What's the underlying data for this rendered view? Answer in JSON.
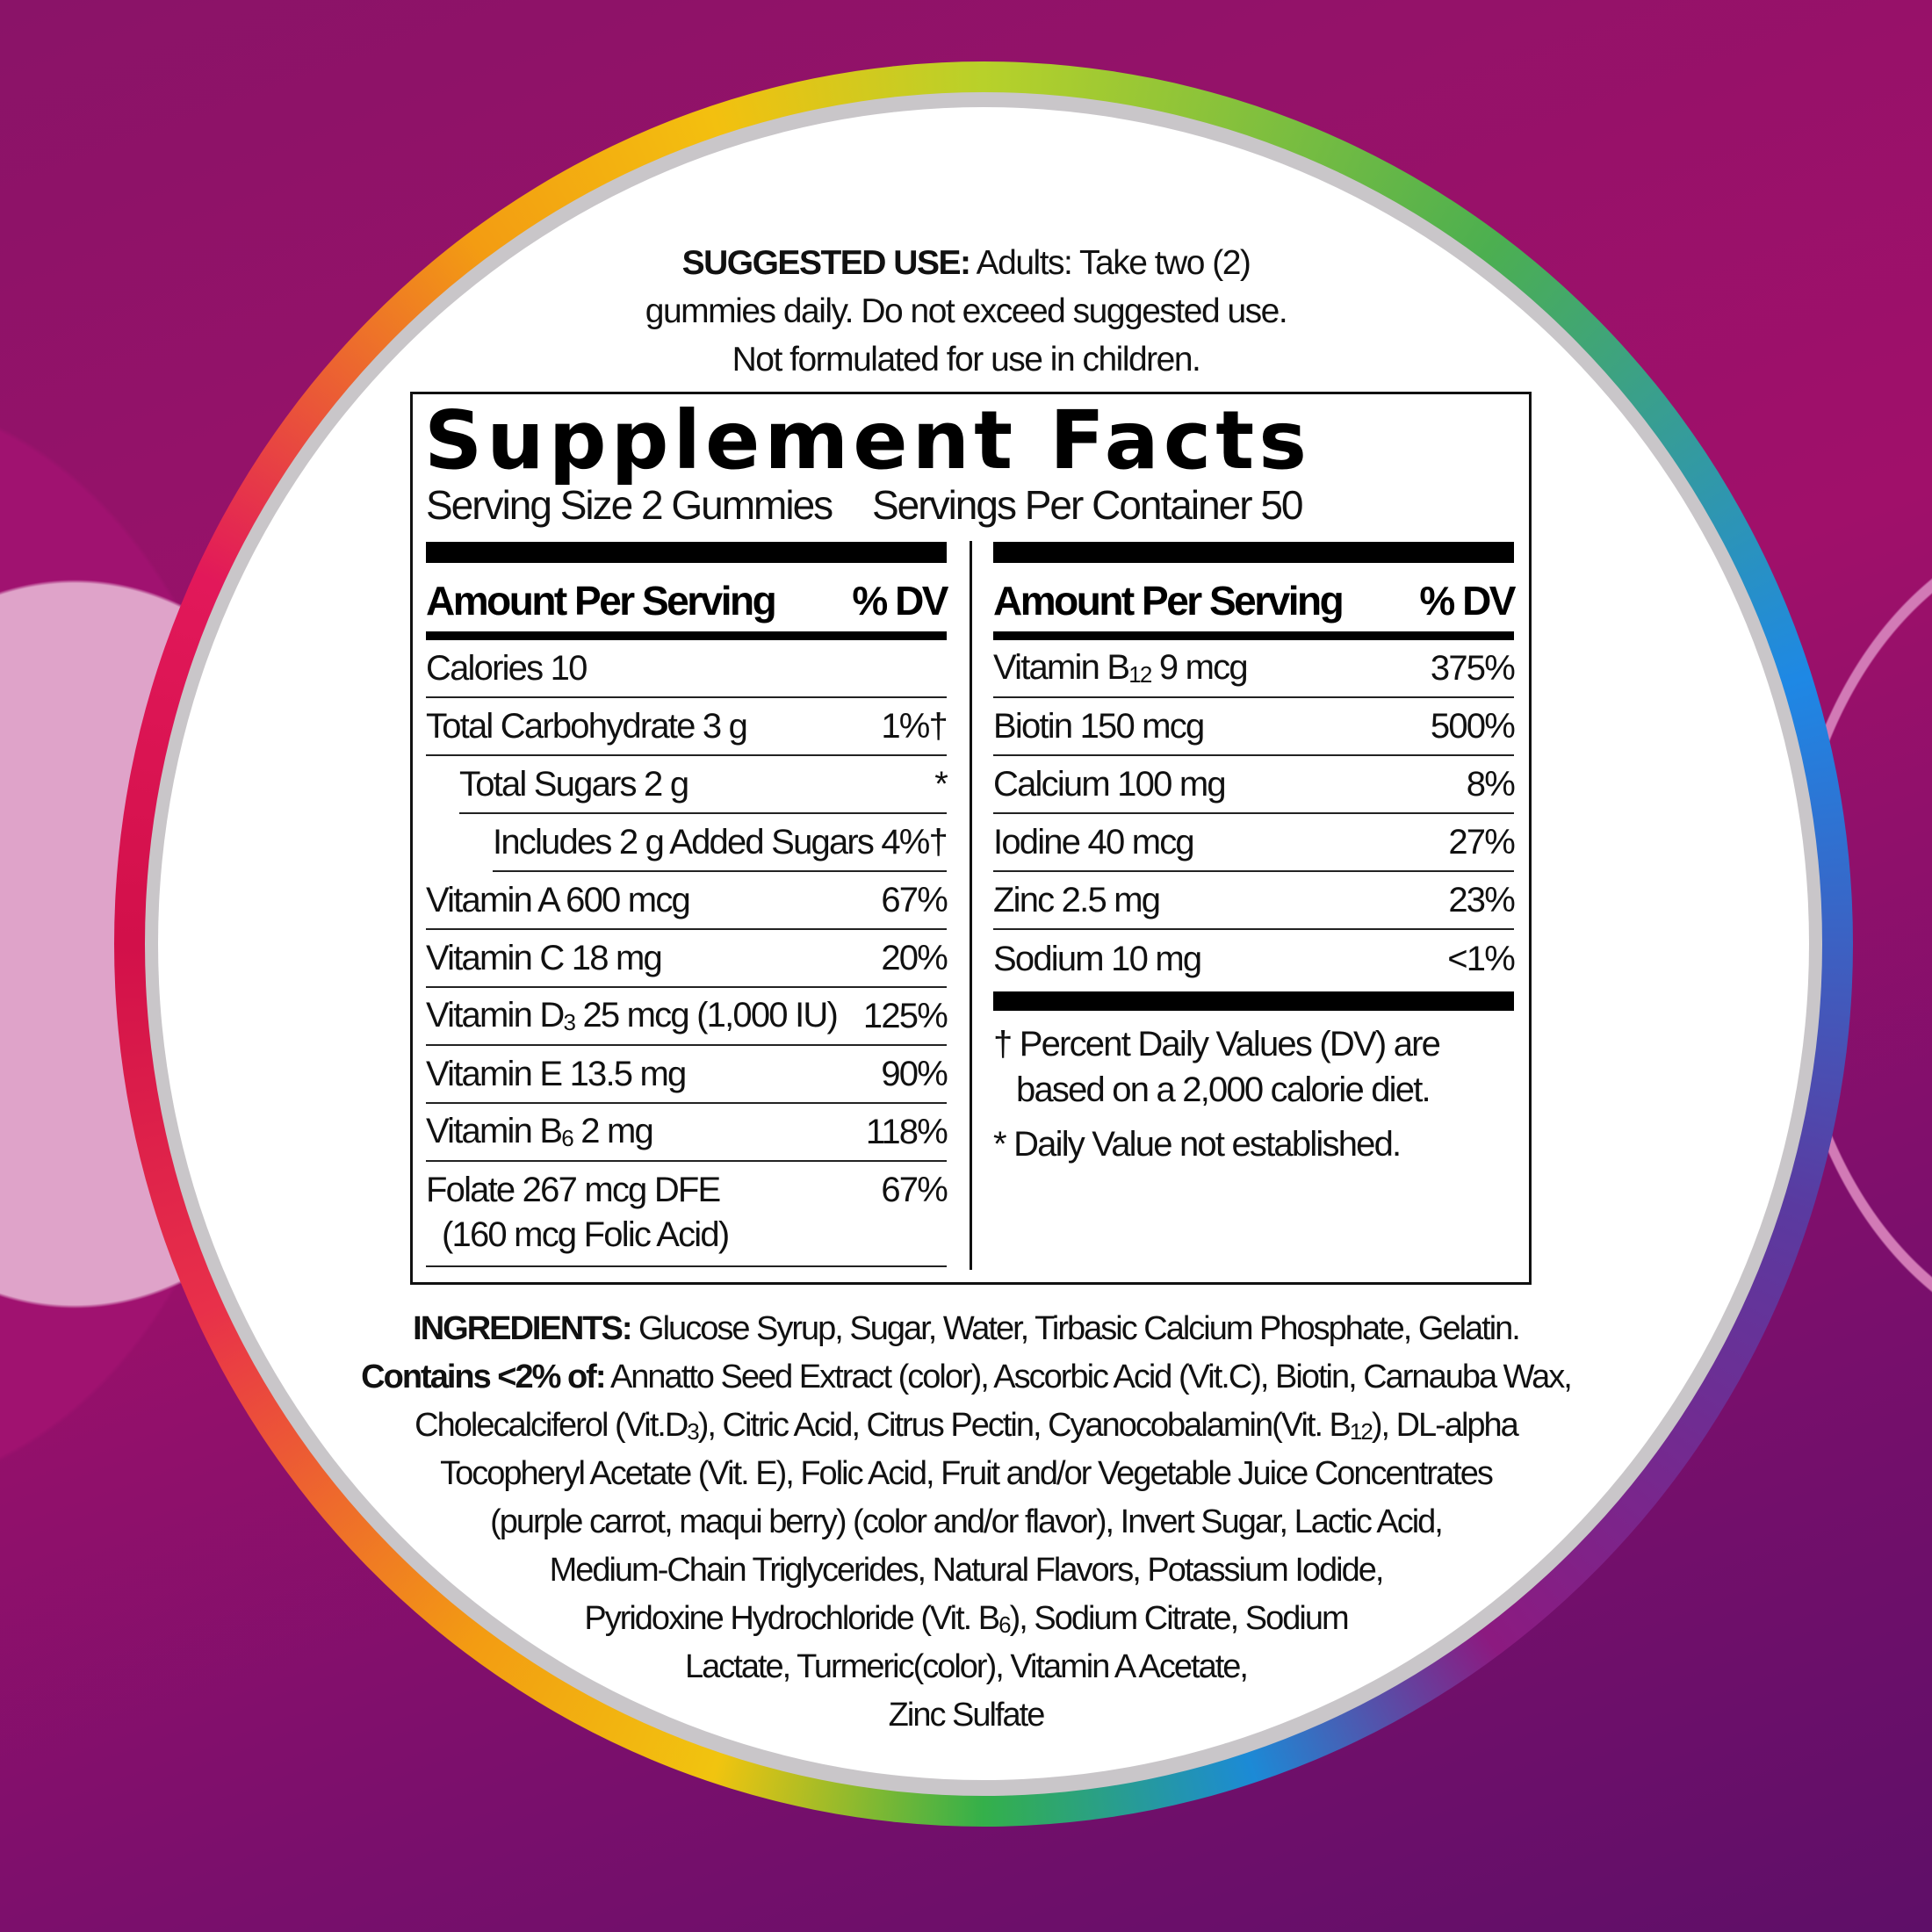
{
  "suggested_use": {
    "label": "SUGGESTED USE:",
    "lines": [
      " Adults: Take two (2)",
      "gummies daily. Do not exceed suggested use.",
      "Not formulated for use in children."
    ]
  },
  "facts": {
    "title": "Supplement Facts",
    "serving_size": "Serving Size 2 Gummies",
    "servings_per_container": "Servings Per Container 50",
    "header_amount": "Amount Per Serving",
    "header_dv": "% DV",
    "left_rows": [
      {
        "label": "Calories 10",
        "dv": "",
        "indent": 0
      },
      {
        "label": "Total Carbohydrate 3 g",
        "dv": "1%†",
        "indent": 0
      },
      {
        "label": "Total Sugars 2 g",
        "dv": "*",
        "indent": 1
      },
      {
        "label": "Includes 2 g Added Sugars",
        "dv": "4%†",
        "indent": 2
      },
      {
        "label": "Vitamin A 600 mcg",
        "dv": "67%",
        "indent": 0
      },
      {
        "label": "Vitamin C 18 mg",
        "dv": "20%",
        "indent": 0
      },
      {
        "label": "Vitamin D",
        "sub": "3",
        "rest": " 25 mcg (1,000 IU)",
        "dv": "125%",
        "indent": 0
      },
      {
        "label": "Vitamin E 13.5 mg",
        "dv": "90%",
        "indent": 0
      },
      {
        "label": "Vitamin B",
        "sub": "6",
        "rest": " 2 mg",
        "dv": "118%",
        "indent": 0
      },
      {
        "label": "Folate 267 mcg DFE",
        "label2": "(160 mcg Folic Acid)",
        "dv": "67%",
        "indent": 0
      }
    ],
    "right_rows": [
      {
        "label": "Vitamin B",
        "sub": "12",
        "rest": " 9 mcg",
        "dv": "375%"
      },
      {
        "label": "Biotin 150 mcg",
        "dv": "500%"
      },
      {
        "label": "Calcium 100 mg",
        "dv": "8%"
      },
      {
        "label": "Iodine 40 mcg",
        "dv": "27%"
      },
      {
        "label": "Zinc 2.5 mg",
        "dv": "23%"
      },
      {
        "label": "Sodium 10 mg",
        "dv": "<1%"
      }
    ],
    "footnote_dagger_1": "† Percent Daily Values (DV) are",
    "footnote_dagger_2": "based on a 2,000 calorie diet.",
    "footnote_star": "* Daily Value not established."
  },
  "ingredients": {
    "label": "INGREDIENTS:",
    "line1": " Glucose Syrup, Sugar, Water, Tirbasic Calcium Phosphate, Gelatin.",
    "contains_label": "Contains <2% of:",
    "line2": " Annatto Seed Extract (color), Ascorbic Acid (Vit.C), Biotin, Carnauba Wax,",
    "line3a": "Cholecalciferol (Vit.D",
    "line3sub1": "3",
    "line3b": "), Citric Acid, Citrus Pectin, Cyanocobalamin(Vit. B",
    "line3sub2": "12",
    "line3c": "), DL-alpha",
    "line4": "Tocopheryl Acetate (Vit. E), Folic Acid, Fruit and/or Vegetable Juice Concentrates",
    "line5": "(purple carrot, maqui berry) (color and/or flavor), Invert Sugar, Lactic Acid,",
    "line6": "Medium-Chain Triglycerides, Natural Flavors,  Potassium Iodide,",
    "line7a": "Pyridoxine Hydrochloride (Vit. B",
    "line7sub": "6",
    "line7b": "), Sodium Citrate, Sodium",
    "line8": "Lactate, Turmeric(color), Vitamin A Acetate,",
    "line9": "Zinc Sulfate"
  }
}
